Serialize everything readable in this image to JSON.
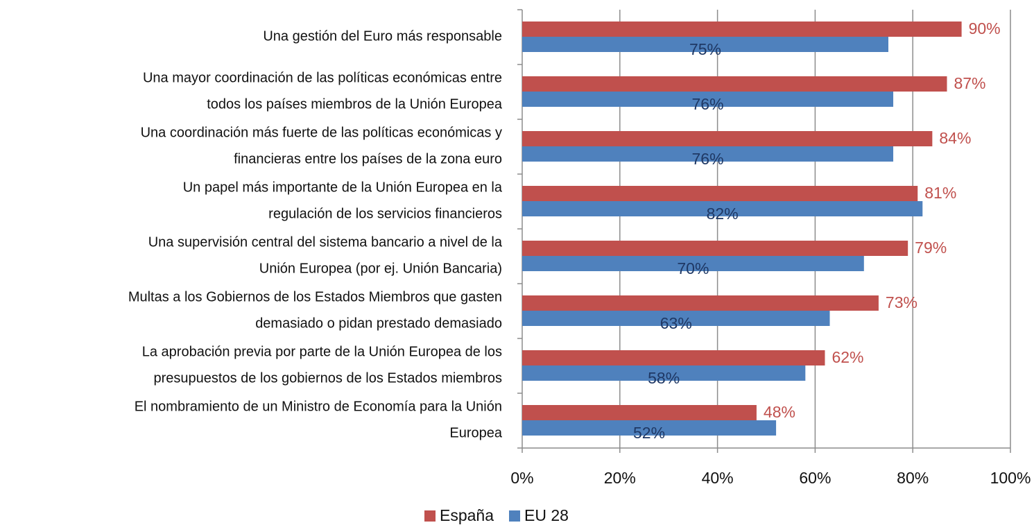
{
  "chart_data": {
    "type": "bar",
    "orientation": "horizontal",
    "categories": [
      [
        "Una gestión del Euro más responsable"
      ],
      [
        "Una mayor coordinación de las políticas económicas entre",
        "todos los países miembros de la Unión Europea"
      ],
      [
        "Una coordinación más fuerte de las políticas económicas y",
        "financieras entre los países de la zona euro"
      ],
      [
        "Un papel más importante de la Unión Europea en la",
        "regulación de los servicios financieros"
      ],
      [
        "Una supervisión central del sistema bancario a nivel de la",
        "Unión Europea (por ej. Unión Bancaria)"
      ],
      [
        "Multas a los Gobiernos de los Estados Miembros que gasten",
        "demasiado o pidan prestado demasiado"
      ],
      [
        "La aprobación previa por parte de la Unión Europea de los",
        "presupuestos de los gobiernos de los Estados miembros"
      ],
      [
        "El nombramiento de un Ministro de Economía para la Unión",
        "Europea"
      ]
    ],
    "series": [
      {
        "name": "España",
        "color": "#c0504d",
        "values": [
          90,
          87,
          84,
          81,
          79,
          73,
          62,
          48
        ],
        "value_labels": [
          "90%",
          "87%",
          "84%",
          "81%",
          "79%",
          "73%",
          "62%",
          "48%"
        ]
      },
      {
        "name": "EU 28",
        "color": "#4f81bd",
        "values": [
          75,
          76,
          76,
          82,
          70,
          63,
          58,
          52
        ],
        "value_labels": [
          "75%",
          "76%",
          "76%",
          "82%",
          "70%",
          "63%",
          "58%",
          "52%"
        ]
      }
    ],
    "xlim": [
      0,
      100
    ],
    "xticks": [
      {
        "value": 0,
        "label": "0%"
      },
      {
        "value": 20,
        "label": "20%"
      },
      {
        "value": 40,
        "label": "40%"
      },
      {
        "value": 60,
        "label": "60%"
      },
      {
        "value": 80,
        "label": "80%"
      },
      {
        "value": 100,
        "label": "100%"
      }
    ],
    "grid": true,
    "legend": "bottom"
  }
}
